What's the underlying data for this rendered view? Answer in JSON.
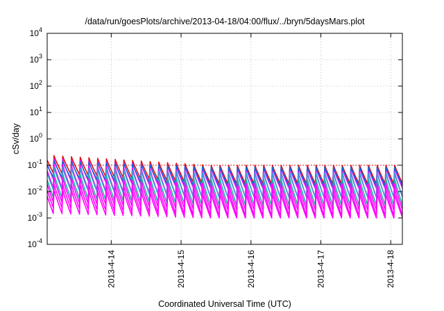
{
  "chart_data": {
    "type": "line",
    "title": "/data/run/goesPlots/archive/2013-04-18/04:00/flux/../bryn/5daysMars.plot",
    "xlabel": "Coordinated Universal Time (UTC)",
    "ylabel": "cSv/day",
    "yscale": "log",
    "ylim": [
      0.0001,
      10000
    ],
    "xlim": [
      "2013-04-13 02:00",
      "2013-04-18 04:00"
    ],
    "x_tick_labels": [
      "2013-4-14",
      "2013-4-15",
      "2013-4-16",
      "2013-4-17",
      "2013-4-18"
    ],
    "x_tick_dates": [
      "2013-04-14",
      "2013-04-15",
      "2013-04-16",
      "2013-04-17",
      "2013-04-18"
    ],
    "y_tick_labels": [
      {
        "base": "10",
        "exp": "-4"
      },
      {
        "base": "10",
        "exp": "-3"
      },
      {
        "base": "10",
        "exp": "-2"
      },
      {
        "base": "10",
        "exp": "-1"
      },
      {
        "base": "10",
        "exp": "0"
      },
      {
        "base": "10",
        "exp": "1"
      },
      {
        "base": "10",
        "exp": "2"
      },
      {
        "base": "10",
        "exp": "3"
      },
      {
        "base": "10",
        "exp": "4"
      }
    ],
    "y_tick_values": [
      0.0001,
      0.001,
      0.01,
      0.1,
      1,
      10,
      100,
      1000,
      10000
    ],
    "grid": true,
    "sawtooth_period_hours": 3,
    "reference_level": 0.1,
    "series": [
      {
        "color": "#e01010",
        "peak_start": 0.24,
        "peak_end": 0.1,
        "trough_start": 0.05,
        "trough_end": 0.02
      },
      {
        "color": "#ff00ff",
        "peak_start": 0.18,
        "peak_end": 0.08,
        "trough_start": 0.03,
        "trough_end": 0.013
      },
      {
        "color": "#1565e0",
        "peak_start": 0.15,
        "peak_end": 0.085,
        "trough_start": 0.035,
        "trough_end": 0.016
      },
      {
        "color": "#ff00ff",
        "peak_start": 0.11,
        "peak_end": 0.055,
        "trough_start": 0.014,
        "trough_end": 0.006
      },
      {
        "color": "#3a9bdc",
        "peak_start": 0.085,
        "peak_end": 0.05,
        "trough_start": 0.012,
        "trough_end": 0.006
      },
      {
        "color": "#20b0a0",
        "peak_start": 0.05,
        "peak_end": 0.03,
        "trough_start": 0.006,
        "trough_end": 0.003
      },
      {
        "color": "#ff00ff",
        "peak_start": 0.035,
        "peak_end": 0.02,
        "trough_start": 0.004,
        "trough_end": 0.002
      },
      {
        "color": "#ff00ff",
        "peak_start": 0.02,
        "peak_end": 0.013,
        "trough_start": 0.0025,
        "trough_end": 0.0012
      },
      {
        "color": "#ff00ff",
        "peak_start": 0.012,
        "peak_end": 0.008,
        "trough_start": 0.0015,
        "trough_end": 0.001
      }
    ]
  }
}
